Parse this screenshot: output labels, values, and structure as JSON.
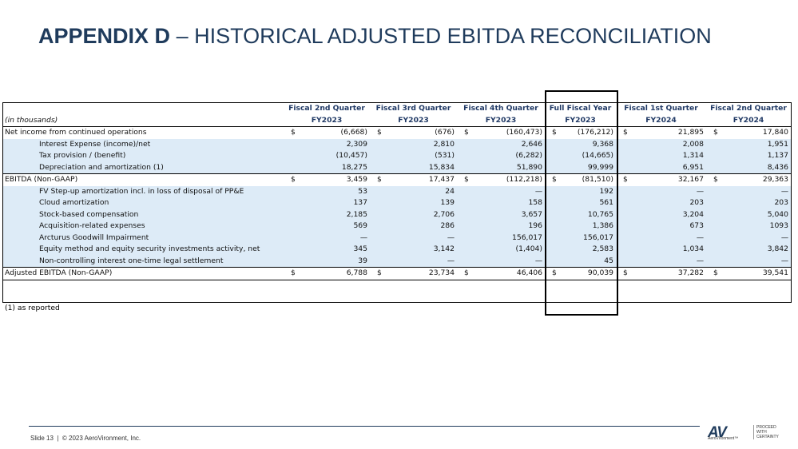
{
  "header": {
    "title_bold": "APPENDIX D",
    "title_rest": "– HISTORICAL ADJUSTED EBITDA RECONCILIATION"
  },
  "table": {
    "units": "(in thousands)",
    "columns": [
      {
        "line1": "Fiscal 2nd Quarter",
        "line2": "FY2023"
      },
      {
        "line1": "Fiscal 3rd Quarter",
        "line2": "FY2023"
      },
      {
        "line1": "Fiscal 4th Quarter",
        "line2": "FY2023"
      },
      {
        "line1": "Full Fiscal Year",
        "line2": "FY2023"
      },
      {
        "line1": "Fiscal 1st Quarter",
        "line2": "FY2024"
      },
      {
        "line1": "Fiscal 2nd Quarter",
        "line2": "FY2024"
      }
    ],
    "rows": [
      {
        "label": "Net income from continued operations",
        "cells": [
          [
            "$",
            "(6,668)"
          ],
          [
            "$",
            "(676)"
          ],
          [
            "$",
            "(160,473)"
          ],
          [
            "$",
            "(176,212)"
          ],
          [
            "$",
            "21,895"
          ],
          [
            "$",
            "17,840"
          ]
        ]
      },
      {
        "label": "Interest Expense (income)/net",
        "cells": [
          [
            "2,309"
          ],
          [
            "2,810"
          ],
          [
            "2,646"
          ],
          [
            "9,368"
          ],
          [
            "2,008"
          ],
          [
            "1,951"
          ]
        ]
      },
      {
        "label": "Tax provision / (benefit)",
        "cells": [
          [
            "(10,457)"
          ],
          [
            "(531)"
          ],
          [
            "(6,282)"
          ],
          [
            "(14,665)"
          ],
          [
            "1,314"
          ],
          [
            "1,137"
          ]
        ]
      },
      {
        "label": "Depreciation and amortization (1)",
        "cells": [
          [
            "18,275"
          ],
          [
            "15,834"
          ],
          [
            "51,890"
          ],
          [
            "99,999"
          ],
          [
            "6,951"
          ],
          [
            "8,436"
          ]
        ]
      },
      {
        "label": "EBITDA (Non-GAAP)",
        "cells": [
          [
            "$",
            "3,459"
          ],
          [
            "$",
            "17,437"
          ],
          [
            "$",
            "(112,218)"
          ],
          [
            "$",
            "(81,510)"
          ],
          [
            "$",
            "32,167"
          ],
          [
            "$",
            "29,363"
          ]
        ]
      },
      {
        "label": "FV Step-up amortization incl. in loss of disposal of PP&E",
        "cells": [
          [
            "53"
          ],
          [
            "24"
          ],
          [
            "—"
          ],
          [
            "192"
          ],
          [
            "—"
          ],
          [
            "—"
          ]
        ]
      },
      {
        "label": "Cloud amortization",
        "cells": [
          [
            "137"
          ],
          [
            "139"
          ],
          [
            "158"
          ],
          [
            "561"
          ],
          [
            "203"
          ],
          [
            "203"
          ]
        ]
      },
      {
        "label": "Stock-based compensation",
        "cells": [
          [
            "2,185"
          ],
          [
            "2,706"
          ],
          [
            "3,657"
          ],
          [
            "10,765"
          ],
          [
            "3,204"
          ],
          [
            "5,040"
          ]
        ]
      },
      {
        "label": "Acquisition-related expenses",
        "cells": [
          [
            "569"
          ],
          [
            "286"
          ],
          [
            "196"
          ],
          [
            "1,386"
          ],
          [
            "673"
          ],
          [
            "1093"
          ]
        ]
      },
      {
        "label": "Arcturus Goodwill Impairment",
        "cells": [
          [
            "—"
          ],
          [
            "—"
          ],
          [
            "156,017"
          ],
          [
            "156,017"
          ],
          [
            "—"
          ],
          [
            "—"
          ]
        ]
      },
      {
        "label": "Equity method and equity security investments activity, net",
        "cells": [
          [
            "345"
          ],
          [
            "3,142"
          ],
          [
            "(1,404)"
          ],
          [
            "2,583"
          ],
          [
            "1,034"
          ],
          [
            "3,842"
          ]
        ]
      },
      {
        "label": "Non-controlling interest one-time legal settlement",
        "cells": [
          [
            "39"
          ],
          [
            "—"
          ],
          [
            "—"
          ],
          [
            "45"
          ],
          [
            "—"
          ],
          [
            "—"
          ]
        ]
      },
      {
        "label": "Adjusted EBITDA (Non-GAAP)",
        "cells": [
          [
            "$",
            "6,788"
          ],
          [
            "$",
            "23,734"
          ],
          [
            "$",
            "46,406"
          ],
          [
            "$",
            "90,039"
          ],
          [
            "$",
            "37,282"
          ],
          [
            "$",
            "39,541"
          ]
        ]
      }
    ]
  },
  "note": "(1) as reported",
  "footer": {
    "slide": "Slide 13",
    "copyright": "© 2023 AeroVironment, Inc.",
    "logo": "AV",
    "brand": "AeroVironment™",
    "tagline": [
      "PROCEED",
      "WITH",
      "CERTAINTY"
    ]
  }
}
